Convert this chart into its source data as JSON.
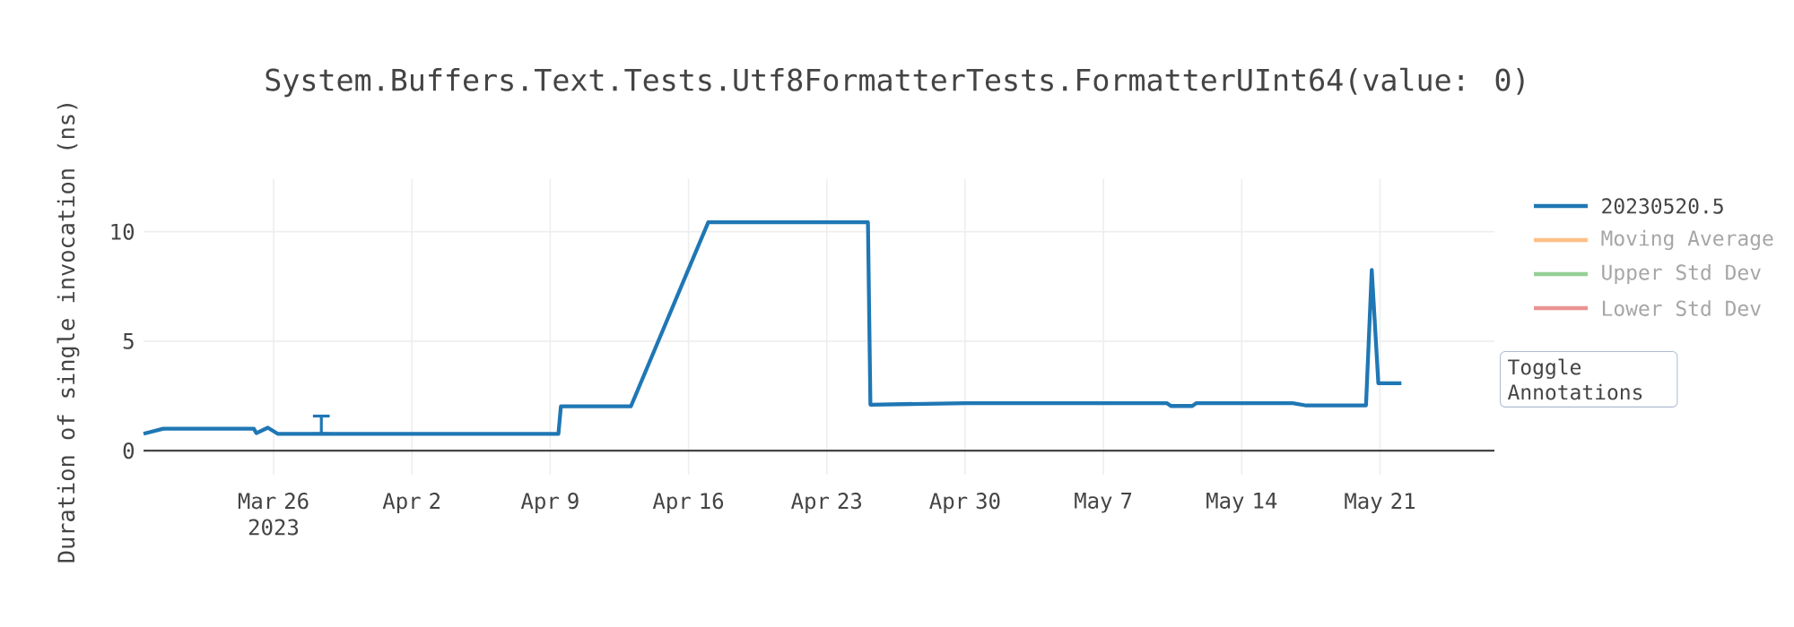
{
  "chart_data": {
    "type": "line",
    "title": "System.Buffers.Text.Tests.Utf8FormatterTests.FormatterUInt64(value: 0)",
    "ylabel": "Duration of single invocation (ns)",
    "x": [
      "2023-03-19T10:00",
      "2023-03-20T10:00",
      "2023-03-25T00:00",
      "2023-03-25T03:00",
      "2023-03-25T17:00",
      "2023-03-26T05:00",
      "2023-03-28T10:00",
      "2023-04-09T10:00",
      "2023-04-09T13:00",
      "2023-04-13T02:00",
      "2023-04-17T00:00",
      "2023-04-25T02:00",
      "2023-04-25T05:00",
      "2023-04-30T00:00",
      "2023-05-10T05:00",
      "2023-05-10T10:00",
      "2023-05-11T12:00",
      "2023-05-11T17:00",
      "2023-05-16T14:00",
      "2023-05-17T05:00",
      "2023-05-20T07:00",
      "2023-05-20T14:00",
      "2023-05-20T22:00",
      "2023-05-22T02:00"
    ],
    "series": [
      {
        "name": "20230520.5",
        "color": "#1f77b4",
        "values": [
          0.77,
          1.0,
          1.0,
          0.8,
          1.05,
          0.77,
          0.77,
          0.77,
          2.02,
          2.02,
          10.43,
          10.43,
          2.1,
          2.17,
          2.17,
          2.04,
          2.04,
          2.17,
          2.17,
          2.07,
          2.07,
          8.25,
          3.08,
          3.08
        ],
        "errors": [
          null,
          null,
          null,
          null,
          null,
          null,
          [
            0.77,
            1.58
          ],
          null,
          null,
          null,
          null,
          null,
          null,
          null,
          null,
          null,
          null,
          null,
          null,
          null,
          null,
          null,
          null,
          null
        ]
      },
      {
        "name": "Moving Average",
        "color": "#ffbf86",
        "values": [
          null,
          null,
          null,
          null,
          null,
          null,
          null,
          null,
          null,
          null,
          null,
          null,
          null,
          null,
          null,
          null,
          null,
          null,
          null,
          null,
          null,
          null,
          null,
          null
        ]
      },
      {
        "name": "Upper Std Dev",
        "color": "#95cf95",
        "values": [
          null,
          null,
          null,
          null,
          null,
          null,
          null,
          null,
          null,
          null,
          null,
          null,
          null,
          null,
          null,
          null,
          null,
          null,
          null,
          null,
          null,
          null,
          null,
          null
        ]
      },
      {
        "name": "Lower Std Dev",
        "color": "#ea9393",
        "values": [
          null,
          null,
          null,
          null,
          null,
          null,
          null,
          null,
          null,
          null,
          null,
          null,
          null,
          null,
          null,
          null,
          null,
          null,
          null,
          null,
          null,
          null,
          null,
          null
        ]
      }
    ],
    "xlim": [
      "2023-03-19T10:00",
      "2023-05-26T19:00"
    ],
    "xticks": [
      {
        "value": "2023-03-26",
        "label": "Mar 26 2023"
      },
      {
        "value": "2023-04-02",
        "label": "Apr 2"
      },
      {
        "value": "2023-04-09",
        "label": "Apr 9"
      },
      {
        "value": "2023-04-16",
        "label": "Apr 16"
      },
      {
        "value": "2023-04-23",
        "label": "Apr 23"
      },
      {
        "value": "2023-04-30",
        "label": "Apr 30"
      },
      {
        "value": "2023-05-07",
        "label": "May 7"
      },
      {
        "value": "2023-05-14",
        "label": "May 14"
      },
      {
        "value": "2023-05-21",
        "label": "May 21"
      }
    ],
    "ylim": [
      -1.1,
      12.4
    ],
    "yticks": [
      0,
      5,
      10
    ],
    "grid": true,
    "legend": "right",
    "marker": "none",
    "line_style": "solid",
    "annotations": [
      "Toggle Annotations"
    ]
  }
}
